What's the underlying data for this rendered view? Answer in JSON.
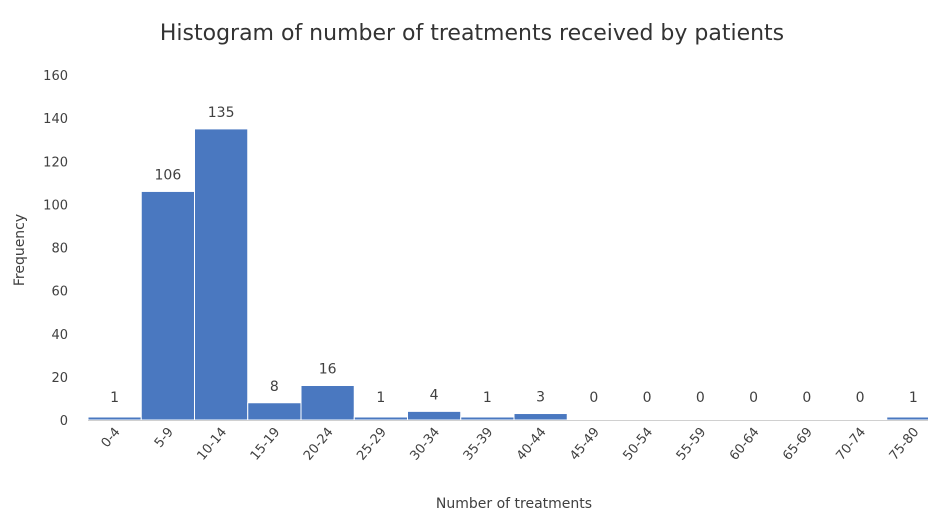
{
  "chart_data": {
    "type": "bar",
    "title": "Histogram of number of treatments received by patients",
    "xlabel": "Number of treatments",
    "ylabel": "Frequency",
    "categories": [
      "0-4",
      "5-9",
      "10-14",
      "15-19",
      "20-24",
      "25-29",
      "30-34",
      "35-39",
      "40-44",
      "45-49",
      "50-54",
      "55-59",
      "60-64",
      "65-69",
      "70-74",
      "75-80"
    ],
    "values": [
      1,
      106,
      135,
      8,
      16,
      1,
      4,
      1,
      3,
      0,
      0,
      0,
      0,
      0,
      0,
      1
    ],
    "ylim": [
      0,
      160
    ],
    "yticks": [
      0,
      20,
      40,
      60,
      80,
      100,
      120,
      140,
      160
    ],
    "grid": false,
    "legend": "none",
    "bar_color": "#4a78c0",
    "bar_gap": 0
  }
}
